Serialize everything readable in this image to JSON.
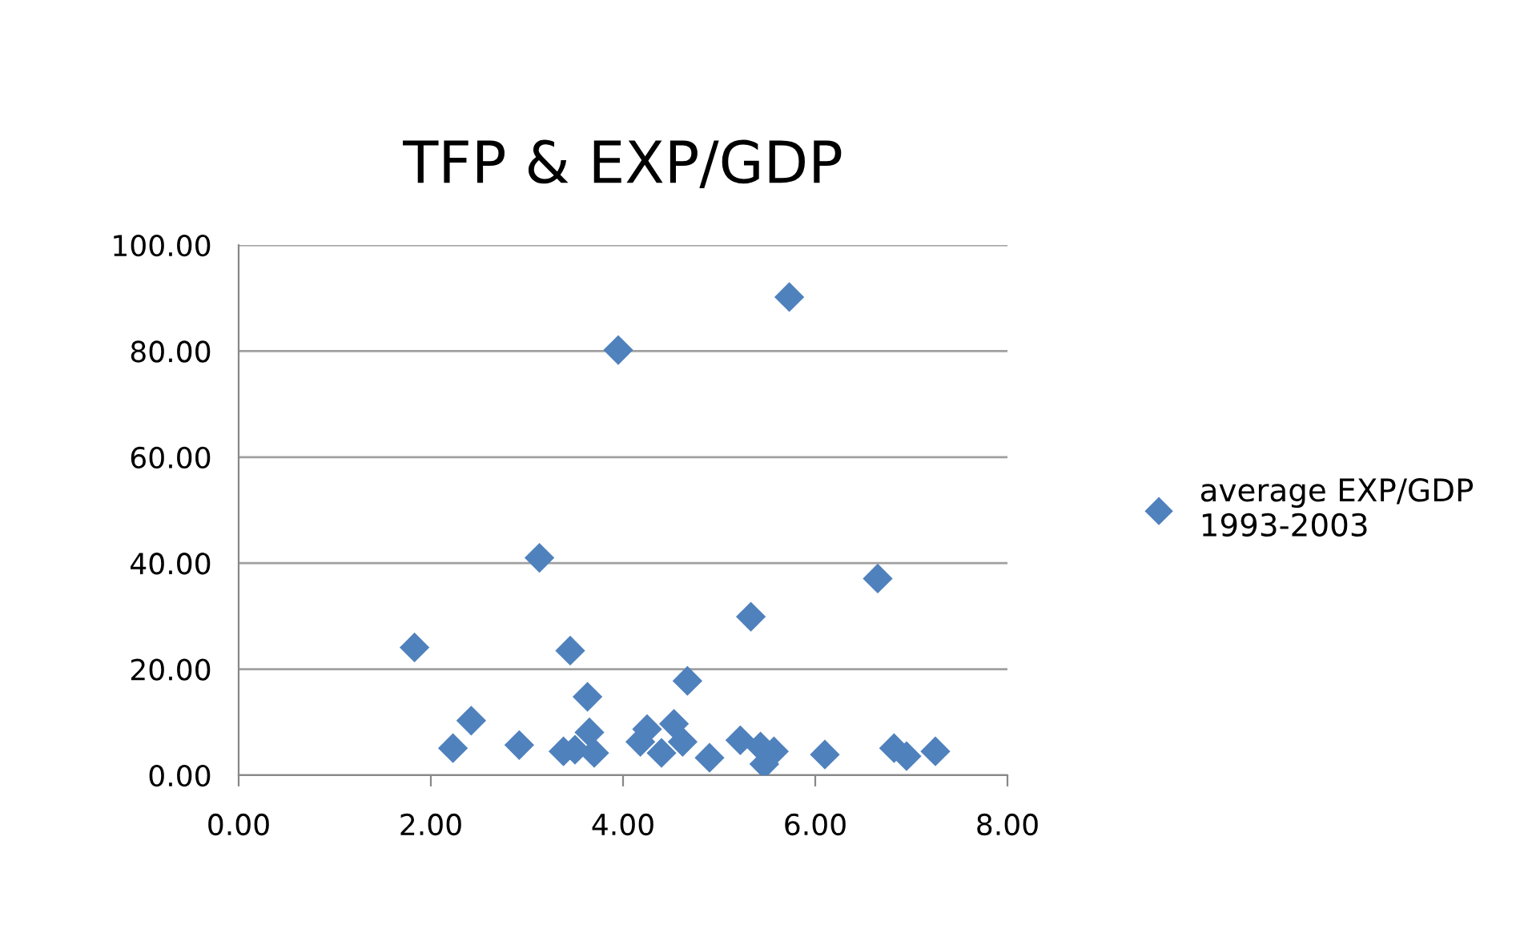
{
  "chart_data": {
    "type": "scatter",
    "title": "TFP & EXP/GDP",
    "marker": "diamond",
    "grid": "y",
    "legend": "right",
    "xlim": [
      0,
      8
    ],
    "xticks": [
      {
        "value": 0,
        "label": "0.00"
      },
      {
        "value": 2,
        "label": "2.00"
      },
      {
        "value": 4,
        "label": "4.00"
      },
      {
        "value": 6,
        "label": "6.00"
      },
      {
        "value": 8,
        "label": "8.00"
      }
    ],
    "ylim": [
      0,
      100
    ],
    "yticks": [
      {
        "value": 0,
        "label": "0.00"
      },
      {
        "value": 20,
        "label": "20.00"
      },
      {
        "value": 40,
        "label": "40.00"
      },
      {
        "value": 60,
        "label": "60.00"
      },
      {
        "value": 80,
        "label": "80.00"
      },
      {
        "value": 100,
        "label": "100.00"
      }
    ],
    "series": [
      {
        "name": "average EXP/GDP\n1993-2003",
        "color": "#4f81bd",
        "x": [
          1.83,
          2.23,
          2.42,
          2.92,
          3.13,
          3.38,
          3.45,
          3.63,
          3.65,
          3.7,
          3.5,
          3.95,
          4.67,
          4.18,
          4.25,
          4.4,
          4.53,
          4.62,
          4.9,
          5.22,
          5.33,
          5.43,
          5.47,
          5.57,
          5.73,
          6.1,
          6.65,
          6.82,
          6.95,
          7.25
        ],
        "values": [
          24.1,
          5.1,
          10.3,
          5.7,
          41.0,
          4.5,
          23.5,
          14.8,
          8.1,
          4.2,
          4.8,
          80.2,
          17.8,
          6.3,
          8.7,
          4.2,
          9.7,
          6.3,
          3.3,
          6.6,
          29.9,
          5.4,
          2.1,
          4.5,
          90.2,
          3.9,
          37.1,
          5.1,
          3.6,
          4.5
        ]
      }
    ]
  }
}
